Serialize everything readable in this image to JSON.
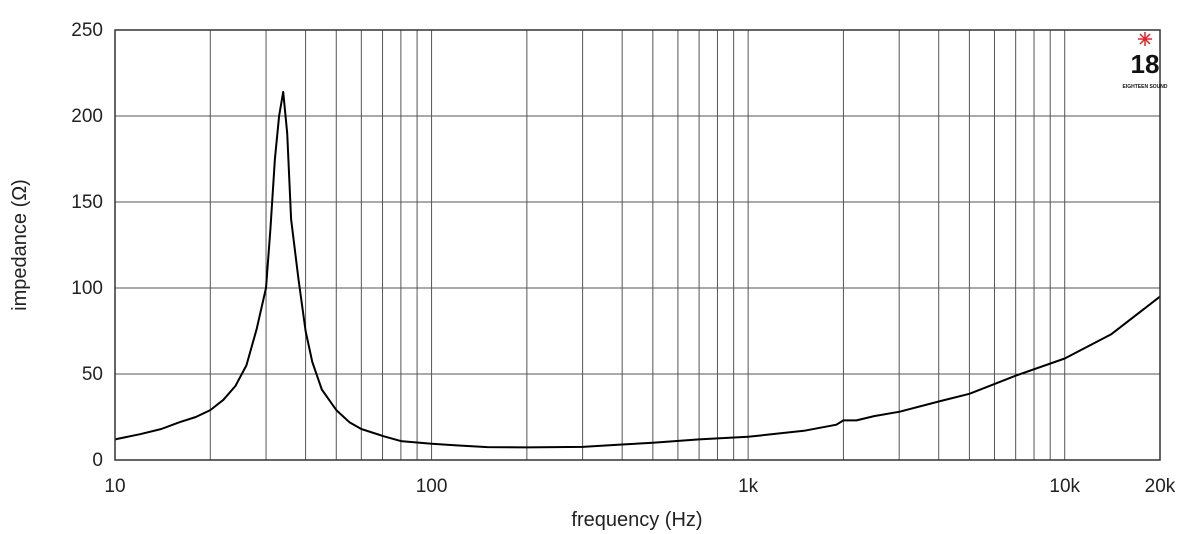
{
  "chart_data": {
    "type": "line",
    "title": "",
    "xlabel": "frequency (Hz)",
    "ylabel": "impedance (Ω)",
    "x_scale": "log",
    "xlim": [
      10,
      20000
    ],
    "ylim": [
      0,
      250
    ],
    "grid": true,
    "x_tick_labels": [
      {
        "value": 10,
        "label": "10"
      },
      {
        "value": 100,
        "label": "100"
      },
      {
        "value": 1000,
        "label": "1k"
      },
      {
        "value": 10000,
        "label": "10k"
      },
      {
        "value": 20000,
        "label": "20k"
      }
    ],
    "y_ticks": [
      0,
      50,
      100,
      150,
      200,
      250
    ],
    "line_color": "#000000",
    "series": [
      {
        "x": [
          10,
          12,
          14,
          16,
          18,
          20,
          22,
          24,
          26,
          28,
          30,
          31,
          32,
          33,
          34,
          35,
          36,
          38,
          40,
          42,
          45,
          50,
          55,
          60,
          70,
          80,
          100,
          120,
          150,
          200,
          300,
          400,
          500,
          700,
          1000,
          1500,
          1900,
          2000,
          2100,
          2200,
          2500,
          3000,
          4000,
          5000,
          7000,
          10000,
          14000,
          20000
        ],
        "values": [
          12,
          15,
          18,
          22,
          25,
          29,
          35,
          43,
          55,
          76,
          100,
          135,
          175,
          200,
          214,
          190,
          140,
          105,
          75,
          57,
          41,
          29,
          22,
          18,
          14,
          11,
          9.5,
          8.5,
          7.5,
          7.3,
          7.6,
          9,
          10,
          12,
          13.5,
          17,
          20.5,
          23,
          23,
          23,
          25.5,
          28,
          34,
          38.5,
          49,
          59,
          73,
          95
        ]
      }
    ],
    "logo": {
      "number": "18",
      "text": "EIGHTEEN SOUND",
      "accent_color": "#e02020"
    }
  }
}
